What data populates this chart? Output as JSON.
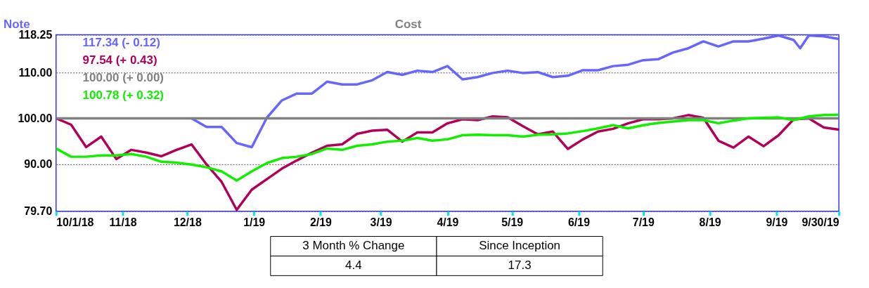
{
  "chart_data": {
    "type": "line",
    "x": [
      "2018-10-01",
      "2018-10-08",
      "2018-10-15",
      "2018-10-22",
      "2018-10-29",
      "2018-11-05",
      "2018-11-12",
      "2018-11-19",
      "2018-11-26",
      "2018-12-03",
      "2018-12-10",
      "2018-12-17",
      "2018-12-24",
      "2018-12-31",
      "2019-01-07",
      "2019-01-14",
      "2019-01-21",
      "2019-01-28",
      "2019-02-04",
      "2019-02-11",
      "2019-02-18",
      "2019-02-25",
      "2019-03-04",
      "2019-03-11",
      "2019-03-18",
      "2019-03-25",
      "2019-04-01",
      "2019-04-08",
      "2019-04-15",
      "2019-04-22",
      "2019-04-29",
      "2019-05-06",
      "2019-05-13",
      "2019-05-20",
      "2019-05-27",
      "2019-06-03",
      "2019-06-10",
      "2019-06-17",
      "2019-06-24",
      "2019-07-01",
      "2019-07-08",
      "2019-07-15",
      "2019-07-22",
      "2019-07-29",
      "2019-08-05",
      "2019-08-12",
      "2019-08-19",
      "2019-08-26",
      "2019-09-02",
      "2019-09-09",
      "2019-09-16",
      "2019-09-23",
      "2019-09-30"
    ],
    "series": [
      {
        "name": "Note",
        "color": "#6666ff",
        "x": [
          "2018-12-03",
          "2018-12-10",
          "2018-12-17",
          "2018-12-24",
          "2018-12-31",
          "2019-01-07",
          "2019-01-14",
          "2019-01-21",
          "2019-01-28",
          "2019-02-04",
          "2019-02-11",
          "2019-02-18",
          "2019-02-25",
          "2019-03-04",
          "2019-03-11",
          "2019-03-18",
          "2019-03-25",
          "2019-04-01",
          "2019-04-08",
          "2019-04-15",
          "2019-04-22",
          "2019-04-29",
          "2019-05-06",
          "2019-05-13",
          "2019-05-20",
          "2019-05-27",
          "2019-06-03",
          "2019-06-10",
          "2019-06-17",
          "2019-06-24",
          "2019-07-01",
          "2019-07-08",
          "2019-07-15",
          "2019-07-22",
          "2019-07-29",
          "2019-08-05",
          "2019-08-12",
          "2019-08-19",
          "2019-08-26",
          "2019-09-02",
          "2019-09-09",
          "2019-09-12",
          "2019-09-16",
          "2019-09-23",
          "2019-09-30"
        ],
        "values": [
          100.0,
          98.1,
          98.1,
          94.6,
          93.7,
          100.1,
          103.9,
          105.4,
          105.4,
          108.0,
          107.4,
          107.4,
          108.3,
          110.1,
          109.5,
          110.4,
          110.1,
          111.4,
          108.5,
          109.0,
          109.9,
          110.4,
          109.9,
          110.1,
          109.0,
          109.3,
          110.5,
          110.5,
          111.4,
          111.7,
          112.7,
          112.9,
          114.4,
          115.3,
          116.8,
          115.7,
          116.8,
          116.8,
          117.4,
          118.1,
          117.1,
          115.3,
          118.1,
          117.9,
          117.34
        ]
      },
      {
        "color": "#b0005a",
        "values": [
          100.0,
          98.6,
          93.7,
          96.0,
          91.1,
          93.1,
          92.5,
          91.7,
          93.1,
          94.3,
          89.9,
          86.1,
          80.0,
          84.4,
          86.7,
          89.0,
          90.8,
          92.5,
          94.0,
          94.3,
          96.6,
          97.3,
          97.5,
          94.9,
          96.9,
          96.9,
          98.9,
          99.8,
          99.6,
          100.4,
          100.2,
          98.3,
          96.5,
          97.1,
          93.3,
          95.4,
          97.1,
          97.7,
          98.9,
          99.8,
          99.8,
          100.0,
          100.7,
          100.1,
          95.1,
          93.6,
          96.0,
          93.9,
          96.3,
          99.8,
          100.0,
          98.0,
          97.54
        ]
      },
      {
        "name": "Cost",
        "color": "#808080",
        "x": [
          "2018-10-01",
          "2019-09-30"
        ],
        "values": [
          100.0,
          100.0
        ]
      },
      {
        "color": "#11ee00",
        "values": [
          93.4,
          91.6,
          91.6,
          91.9,
          91.9,
          92.2,
          91.6,
          90.5,
          90.3,
          89.9,
          89.3,
          88.4,
          86.4,
          88.4,
          90.2,
          91.3,
          91.6,
          92.2,
          93.4,
          93.1,
          94.0,
          94.3,
          94.9,
          95.1,
          95.7,
          95.1,
          95.4,
          96.3,
          96.4,
          96.3,
          96.3,
          96.0,
          96.4,
          96.5,
          96.7,
          97.2,
          97.8,
          98.5,
          97.8,
          98.5,
          99.0,
          99.3,
          99.6,
          99.6,
          98.9,
          99.5,
          100.0,
          100.1,
          100.2,
          99.6,
          100.4,
          100.7,
          100.78
        ]
      }
    ],
    "xlim": [
      "2018-10-01",
      "2019-09-30"
    ],
    "xticks": [
      {
        "value": "2018-10-01",
        "label": "10/1/18"
      },
      {
        "value": "2018-11-01",
        "label": "11/18"
      },
      {
        "value": "2018-12-01",
        "label": "12/18"
      },
      {
        "value": "2019-01-01",
        "label": "1/19"
      },
      {
        "value": "2019-02-01",
        "label": "2/19"
      },
      {
        "value": "2019-03-01",
        "label": "3/19"
      },
      {
        "value": "2019-04-01",
        "label": "4/19"
      },
      {
        "value": "2019-05-01",
        "label": "5/19"
      },
      {
        "value": "2019-06-01",
        "label": "6/19"
      },
      {
        "value": "2019-07-01",
        "label": "7/19"
      },
      {
        "value": "2019-08-01",
        "label": "8/19"
      },
      {
        "value": "2019-09-01",
        "label": "9/19"
      },
      {
        "value": "2019-09-30",
        "label": "9/30/19"
      }
    ],
    "ylim": [
      79.7,
      118.25
    ],
    "yticks": [
      {
        "value": 79.7,
        "label": "79.70"
      },
      {
        "value": 90,
        "label": "90.00"
      },
      {
        "value": 100,
        "label": "100.00"
      },
      {
        "value": 110,
        "label": "110.00"
      },
      {
        "value": 118.25,
        "label": "118.25"
      }
    ],
    "grid": "y",
    "legend": "top",
    "annotations": [
      "117.34 (- 0.12)",
      "97.54 (+ 0.43)",
      "100.00 (+ 0.00)",
      "100.78 (+ 0.32)",
      "3 Month % Change",
      "Since Inception",
      "4.4",
      "17.3"
    ]
  }
}
